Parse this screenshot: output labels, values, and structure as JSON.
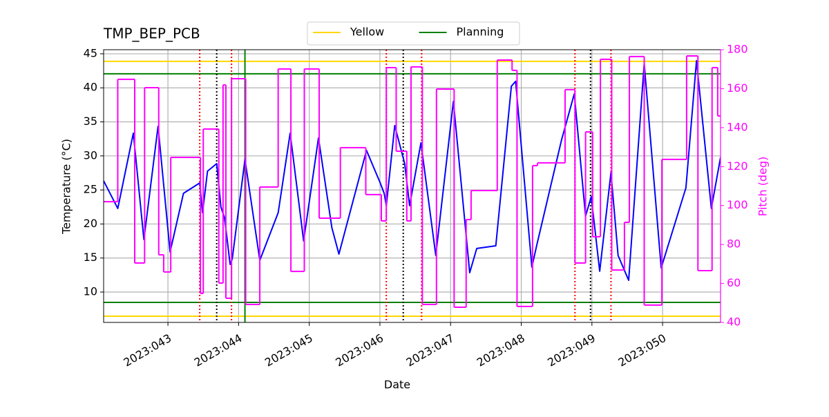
{
  "chart_data": {
    "type": "line",
    "title": "TMP_BEP_PCB",
    "x_label": "Date",
    "y_label": "Temperature (°C)",
    "y2_label": "Pitch (deg)",
    "xlim": [
      42.09,
      50.82
    ],
    "xticks": [
      {
        "value": 43,
        "label": "2023:043"
      },
      {
        "value": 44,
        "label": "2023:044"
      },
      {
        "value": 45,
        "label": "2023:045"
      },
      {
        "value": 46,
        "label": "2023:046"
      },
      {
        "value": 47,
        "label": "2023:047"
      },
      {
        "value": 48,
        "label": "2023:048"
      },
      {
        "value": 49,
        "label": "2023:049"
      },
      {
        "value": 50,
        "label": "2023:050"
      }
    ],
    "ylim": [
      5.54,
      45.6
    ],
    "yticks": [
      10,
      15,
      20,
      25,
      30,
      35,
      40,
      45
    ],
    "y2lim": [
      40,
      180
    ],
    "y2ticks": [
      40,
      60,
      80,
      100,
      120,
      140,
      160,
      180
    ],
    "y2_color": "magenta",
    "grid": true,
    "legend": "upper center",
    "series": [
      {
        "color": "blue",
        "x": [
          42.09,
          42.29,
          42.51,
          42.66,
          42.86,
          43.03,
          43.22,
          43.45,
          43.49,
          43.56,
          43.69,
          43.75,
          43.8,
          43.83,
          43.88,
          43.91,
          44.09,
          44.3,
          44.56,
          44.73,
          44.92,
          45.13,
          45.32,
          45.42,
          45.81,
          46.0,
          46.06,
          46.09,
          46.21,
          46.35,
          46.42,
          46.58,
          46.79,
          47.04,
          47.27,
          47.37,
          47.64,
          47.86,
          47.92,
          48.15,
          48.22,
          48.57,
          48.75,
          48.91,
          48.99,
          49.11,
          49.27,
          49.37,
          49.52,
          49.74,
          49.98,
          50.33,
          50.48,
          50.69,
          50.82
        ],
        "values": [
          26.34,
          22.28,
          33.34,
          17.71,
          34.35,
          15.89,
          24.51,
          26.03,
          21.67,
          27.76,
          28.87,
          22.48,
          20.96,
          18.42,
          14.06,
          14.87,
          29.48,
          14.67,
          21.67,
          33.34,
          17.51,
          32.63,
          19.44,
          15.58,
          30.8,
          26.13,
          24.51,
          22.69,
          34.45,
          28.87,
          22.69,
          31.92,
          15.38,
          38.0,
          12.84,
          16.4,
          16.8,
          40.24,
          40.95,
          13.66,
          16.9,
          32.32,
          39.12,
          21.16,
          24.0,
          13.05,
          27.55,
          15.38,
          11.73,
          43.58,
          13.55,
          25.32,
          43.99,
          22.28,
          29.79
        ]
      },
      {
        "color": "magenta",
        "axis": "y2",
        "drawstyle": "steps-post",
        "x": [
          42.09,
          42.29,
          42.53,
          42.67,
          42.87,
          42.94,
          43.04,
          43.46,
          43.5,
          43.72,
          43.78,
          43.82,
          43.9,
          44.1,
          44.3,
          44.56,
          44.74,
          44.93,
          45.14,
          45.44,
          45.8,
          46.02,
          46.09,
          46.23,
          46.38,
          46.44,
          46.6,
          46.8,
          47.05,
          47.22,
          47.29,
          47.66,
          47.87,
          47.94,
          48.16,
          48.23,
          48.62,
          48.76,
          48.91,
          49.01,
          49.12,
          49.28,
          49.46,
          49.53,
          49.74,
          49.99,
          50.34,
          50.5,
          50.7,
          50.78
        ],
        "values": [
          102.0,
          164.8,
          70.5,
          160.5,
          74.7,
          65.9,
          124.7,
          54.9,
          139.3,
          60.2,
          161.9,
          52.4,
          165.1,
          49.2,
          109.5,
          170.1,
          66.2,
          170.1,
          93.5,
          129.7,
          105.6,
          92.1,
          170.8,
          127.9,
          92.1,
          171.2,
          49.2,
          159.8,
          47.8,
          92.8,
          107.7,
          174.7,
          169.4,
          48.2,
          120.5,
          121.9,
          159.5,
          70.5,
          137.8,
          84.0,
          175.1,
          66.9,
          91.4,
          176.5,
          48.9,
          123.7,
          176.8,
          66.6,
          170.8,
          146.0
        ]
      }
    ],
    "hlines": [
      {
        "name": "Yellow",
        "color": "gold",
        "values": [
          6.45,
          43.89
        ]
      },
      {
        "name": "Planning",
        "color": "green",
        "values": [
          8.48,
          42.06
        ]
      }
    ],
    "vlines": [
      {
        "color": "red",
        "style": "dotted",
        "x": [
          43.45,
          43.9,
          46.09,
          46.59,
          48.76,
          49.27
        ]
      },
      {
        "color": "black",
        "style": "dotted",
        "x": [
          43.69,
          46.33,
          48.98
        ]
      },
      {
        "color": "green",
        "style": "solid",
        "x": [
          44.09
        ]
      }
    ]
  }
}
